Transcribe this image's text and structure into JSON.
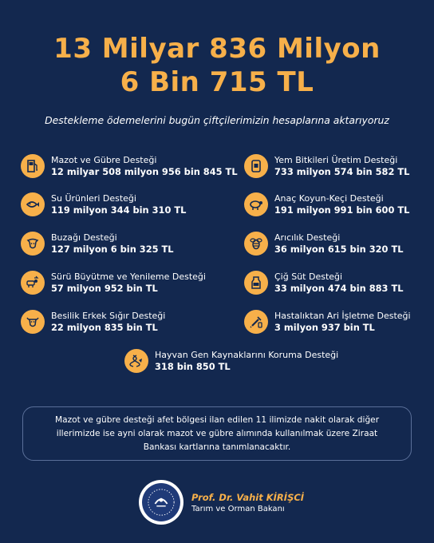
{
  "header": {
    "title_line1": "13 Milyar 836 Milyon",
    "title_line2": "6 Bin 715 TL",
    "subtitle": "Destekleme ödemelerini bugün çiftçilerimizin hesaplarına aktarıyoruz"
  },
  "supports": [
    {
      "label": "Mazot ve Gübre Desteği",
      "amount": "12 milyar 508 milyon 956 bin 845 TL",
      "icon": "fuel-pump-icon"
    },
    {
      "label": "Yem Bitkileri Üretim Desteği",
      "amount": "733 milyon 574 bin 582 TL",
      "icon": "feed-sack-icon"
    },
    {
      "label": "Su Ürünleri Desteği",
      "amount": "119 milyon 344 bin 310 TL",
      "icon": "fish-icon"
    },
    {
      "label": "Anaç Koyun-Keçi Desteği",
      "amount": "191 milyon 991 bin 600 TL",
      "icon": "sheep-icon"
    },
    {
      "label": "Buzağı Desteği",
      "amount": "127 milyon 6 bin 325 TL",
      "icon": "calf-icon"
    },
    {
      "label": "Arıcılık Desteği",
      "amount": "36 milyon 615 bin 320 TL",
      "icon": "bee-icon"
    },
    {
      "label": "Sürü Büyütme ve Yenileme Desteği",
      "amount": "57 milyon 952 bin TL",
      "icon": "herd-icon"
    },
    {
      "label": "Çiğ Süt Desteği",
      "amount": "33 milyon 474 bin 883 TL",
      "icon": "milk-icon"
    },
    {
      "label": "Besilik Erkek Sığır Desteği",
      "amount": "22 milyon 835 bin TL",
      "icon": "bull-icon"
    },
    {
      "label": "Hastalıktan Ari İşletme Desteği",
      "amount": "3 milyon 937 bin TL",
      "icon": "vaccine-icon"
    },
    {
      "label": "Hayvan Gen Kaynaklarını Koruma Desteği",
      "amount": "318 bin 850 TL",
      "icon": "dna-icon"
    }
  ],
  "note": "Mazot ve gübre desteği afet bölgesi ilan edilen 11 ilimizde nakit olarak diğer illerimizde ise ayni olarak mazot ve gübre alımında kullanılmak üzere Ziraat Bankası kartlarına tanımlanacaktır.",
  "footer": {
    "name": "Prof. Dr. Vahit KİRİŞCİ",
    "role": "Tarım ve Orman Bakanı"
  },
  "colors": {
    "background": "#13284f",
    "accent": "#f7b04a",
    "text": "#ffffff"
  }
}
